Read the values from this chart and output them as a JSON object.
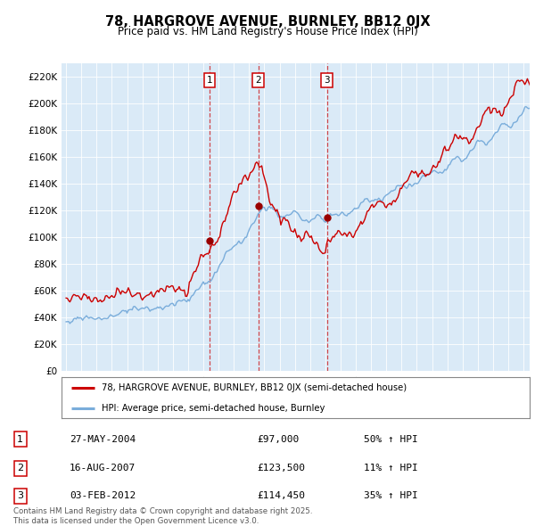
{
  "title": "78, HARGROVE AVENUE, BURNLEY, BB12 0JX",
  "subtitle": "Price paid vs. HM Land Registry's House Price Index (HPI)",
  "ylim": [
    0,
    230000
  ],
  "ytick_step": 20000,
  "plot_bg_color": "#daeaf7",
  "grid_color": "#ffffff",
  "legend_label_red": "78, HARGROVE AVENUE, BURNLEY, BB12 0JX (semi-detached house)",
  "legend_label_blue": "HPI: Average price, semi-detached house, Burnley",
  "sale_markers": [
    {
      "num": 1,
      "date_str": "27-MAY-2004",
      "price": "£97,000",
      "pct": "50% ↑ HPI",
      "year": 2004.4
    },
    {
      "num": 2,
      "date_str": "16-AUG-2007",
      "price": "£123,500",
      "pct": "11% ↑ HPI",
      "year": 2007.6
    },
    {
      "num": 3,
      "date_str": "03-FEB-2012",
      "price": "£114,450",
      "pct": "35% ↑ HPI",
      "year": 2012.1
    }
  ],
  "footer": "Contains HM Land Registry data © Crown copyright and database right 2025.\nThis data is licensed under the Open Government Licence v3.0.",
  "red_color": "#cc0000",
  "blue_color": "#7aaddb",
  "marker_color": "#990000",
  "xlim_left": 1994.7,
  "xlim_right": 2025.4
}
